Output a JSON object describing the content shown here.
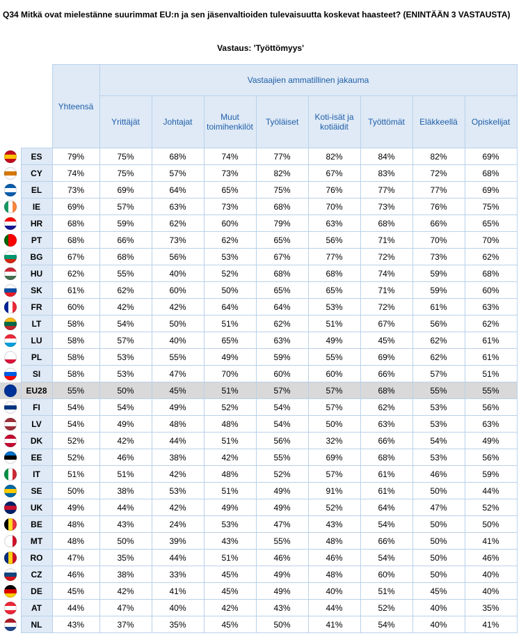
{
  "header": {
    "title": "Q34 Mitkä ovat mielestänne suurimmat EU:n ja sen jäsenvaltioiden tulevaisuutta koskevat haasteet? (ENINTÄÄN 3 VASTAUSTA)",
    "subtitle": "Vastaus: 'Työttömyys'"
  },
  "table": {
    "group_header": "Vastaajien ammatillinen jakauma",
    "columns": [
      "Yhteensä",
      "Yrittäjät",
      "Johtajat",
      "Muut toimihenkilöt",
      "Työläiset",
      "Koti-isät ja kotiäidit",
      "Työttömät",
      "Eläkkeellä",
      "Opiskelijat"
    ],
    "rows": [
      {
        "code": "ES",
        "values": [
          "79%",
          "75%",
          "68%",
          "74%",
          "77%",
          "82%",
          "84%",
          "82%",
          "69%"
        ]
      },
      {
        "code": "CY",
        "values": [
          "74%",
          "75%",
          "57%",
          "73%",
          "82%",
          "67%",
          "83%",
          "72%",
          "68%"
        ]
      },
      {
        "code": "EL",
        "values": [
          "73%",
          "69%",
          "64%",
          "65%",
          "75%",
          "76%",
          "77%",
          "77%",
          "69%"
        ]
      },
      {
        "code": "IE",
        "values": [
          "69%",
          "57%",
          "63%",
          "73%",
          "68%",
          "70%",
          "73%",
          "76%",
          "75%"
        ]
      },
      {
        "code": "HR",
        "values": [
          "68%",
          "59%",
          "62%",
          "60%",
          "79%",
          "63%",
          "68%",
          "66%",
          "65%"
        ]
      },
      {
        "code": "PT",
        "values": [
          "68%",
          "66%",
          "73%",
          "62%",
          "65%",
          "56%",
          "71%",
          "70%",
          "70%"
        ]
      },
      {
        "code": "BG",
        "values": [
          "67%",
          "68%",
          "56%",
          "53%",
          "67%",
          "77%",
          "72%",
          "73%",
          "62%"
        ]
      },
      {
        "code": "HU",
        "values": [
          "62%",
          "55%",
          "40%",
          "52%",
          "68%",
          "68%",
          "74%",
          "59%",
          "68%"
        ]
      },
      {
        "code": "SK",
        "values": [
          "61%",
          "62%",
          "60%",
          "50%",
          "65%",
          "65%",
          "71%",
          "59%",
          "60%"
        ]
      },
      {
        "code": "FR",
        "values": [
          "60%",
          "42%",
          "42%",
          "64%",
          "64%",
          "53%",
          "72%",
          "61%",
          "63%"
        ]
      },
      {
        "code": "LT",
        "values": [
          "58%",
          "54%",
          "50%",
          "51%",
          "62%",
          "51%",
          "67%",
          "56%",
          "62%"
        ]
      },
      {
        "code": "LU",
        "values": [
          "58%",
          "57%",
          "40%",
          "65%",
          "63%",
          "49%",
          "45%",
          "62%",
          "61%"
        ]
      },
      {
        "code": "PL",
        "values": [
          "58%",
          "53%",
          "55%",
          "49%",
          "59%",
          "55%",
          "69%",
          "62%",
          "61%"
        ]
      },
      {
        "code": "SI",
        "values": [
          "58%",
          "53%",
          "47%",
          "70%",
          "60%",
          "60%",
          "66%",
          "57%",
          "51%"
        ]
      },
      {
        "code": "EU28",
        "values": [
          "55%",
          "50%",
          "45%",
          "51%",
          "57%",
          "57%",
          "68%",
          "55%",
          "55%"
        ]
      },
      {
        "code": "FI",
        "values": [
          "54%",
          "54%",
          "49%",
          "52%",
          "54%",
          "57%",
          "62%",
          "53%",
          "56%"
        ]
      },
      {
        "code": "LV",
        "values": [
          "54%",
          "49%",
          "48%",
          "48%",
          "54%",
          "50%",
          "63%",
          "53%",
          "63%"
        ]
      },
      {
        "code": "DK",
        "values": [
          "52%",
          "42%",
          "44%",
          "51%",
          "56%",
          "32%",
          "66%",
          "54%",
          "49%"
        ]
      },
      {
        "code": "EE",
        "values": [
          "52%",
          "46%",
          "38%",
          "42%",
          "55%",
          "69%",
          "68%",
          "53%",
          "56%"
        ]
      },
      {
        "code": "IT",
        "values": [
          "51%",
          "51%",
          "42%",
          "48%",
          "52%",
          "57%",
          "61%",
          "46%",
          "59%"
        ]
      },
      {
        "code": "SE",
        "values": [
          "50%",
          "38%",
          "53%",
          "51%",
          "49%",
          "91%",
          "61%",
          "50%",
          "44%"
        ]
      },
      {
        "code": "UK",
        "values": [
          "49%",
          "44%",
          "42%",
          "49%",
          "49%",
          "52%",
          "64%",
          "47%",
          "52%"
        ]
      },
      {
        "code": "BE",
        "values": [
          "48%",
          "43%",
          "24%",
          "53%",
          "47%",
          "43%",
          "54%",
          "50%",
          "50%"
        ]
      },
      {
        "code": "MT",
        "values": [
          "48%",
          "50%",
          "39%",
          "43%",
          "55%",
          "48%",
          "66%",
          "50%",
          "41%"
        ]
      },
      {
        "code": "RO",
        "values": [
          "47%",
          "35%",
          "44%",
          "51%",
          "46%",
          "46%",
          "54%",
          "50%",
          "46%"
        ]
      },
      {
        "code": "CZ",
        "values": [
          "46%",
          "38%",
          "33%",
          "45%",
          "49%",
          "48%",
          "60%",
          "50%",
          "40%"
        ]
      },
      {
        "code": "DE",
        "values": [
          "45%",
          "42%",
          "41%",
          "45%",
          "49%",
          "40%",
          "51%",
          "45%",
          "40%"
        ]
      },
      {
        "code": "AT",
        "values": [
          "44%",
          "47%",
          "40%",
          "42%",
          "43%",
          "44%",
          "52%",
          "40%",
          "35%"
        ]
      },
      {
        "code": "NL",
        "values": [
          "43%",
          "37%",
          "35%",
          "45%",
          "50%",
          "41%",
          "54%",
          "40%",
          "41%"
        ]
      }
    ]
  }
}
